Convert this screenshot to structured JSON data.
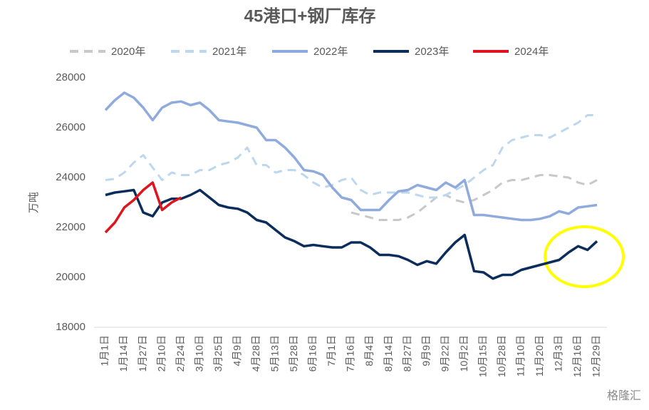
{
  "chart_data": {
    "type": "line",
    "title": "45港口+钢厂库存",
    "ylabel": "万吨",
    "watermark": "格隆汇",
    "categories": [
      "1月1日",
      null,
      "1月14日",
      null,
      "1月27日",
      null,
      "2月10日",
      null,
      "2月24日",
      null,
      "3月10日",
      null,
      "3月25日",
      null,
      "4月9日",
      null,
      "4月28日",
      null,
      "5月13日",
      null,
      "5月28日",
      null,
      "6月16日",
      null,
      "7月1日",
      null,
      "7月16日",
      null,
      "8月4日",
      null,
      "8月14日",
      null,
      "8月27日",
      null,
      "9月9日",
      null,
      "9月22日",
      null,
      "10月2日",
      null,
      "10月15日",
      null,
      "10月28日",
      null,
      "11月10日",
      null,
      "11月20日",
      null,
      "12月3日",
      null,
      "12月16日",
      null,
      "12月29日"
    ],
    "ylim": [
      18000,
      28000
    ],
    "yticks": [
      18000,
      20000,
      22000,
      24000,
      26000,
      28000
    ],
    "grid": false,
    "series": [
      {
        "name": "2020年",
        "color": "#c8c8c8",
        "dashed": true,
        "values": [
          null,
          null,
          null,
          null,
          null,
          null,
          null,
          null,
          null,
          null,
          null,
          null,
          null,
          null,
          null,
          null,
          null,
          null,
          null,
          null,
          null,
          null,
          null,
          null,
          null,
          null,
          22600,
          22500,
          22400,
          22300,
          22300,
          22300,
          22400,
          22600,
          22900,
          23200,
          23300,
          23100,
          23000,
          23100,
          23300,
          23500,
          23800,
          23900,
          23900,
          24000,
          24100,
          24100,
          24050,
          24000,
          23800,
          23700,
          23900
        ]
      },
      {
        "name": "2021年",
        "color": "#bdd7ee",
        "dashed": true,
        "values": [
          23900,
          23950,
          24200,
          24600,
          24900,
          24400,
          23900,
          24200,
          24100,
          24100,
          24300,
          24300,
          24500,
          24600,
          24800,
          25200,
          24500,
          24500,
          24200,
          24300,
          24300,
          24100,
          23800,
          23600,
          23700,
          23900,
          24000,
          23500,
          23300,
          23400,
          23400,
          23400,
          23400,
          23300,
          23200,
          23200,
          23300,
          23500,
          23700,
          24000,
          24300,
          24500,
          25200,
          25500,
          25600,
          25700,
          25700,
          25600,
          25800,
          26000,
          26200,
          26500,
          26500
        ]
      },
      {
        "name": "2022年",
        "color": "#8faadc",
        "dashed": false,
        "values": [
          26700,
          27100,
          27400,
          27200,
          26800,
          26300,
          26800,
          27000,
          27050,
          26900,
          27000,
          26700,
          26300,
          26250,
          26200,
          26100,
          26000,
          25500,
          25500,
          25200,
          24800,
          24300,
          24250,
          24100,
          23600,
          23200,
          23100,
          22700,
          22700,
          22700,
          23100,
          23450,
          23500,
          23700,
          23600,
          23500,
          23800,
          23600,
          23900,
          22500,
          22500,
          22450,
          22400,
          22350,
          22300,
          22300,
          22350,
          22450,
          22650,
          22550,
          22800,
          22850,
          22900
        ]
      },
      {
        "name": "2023年",
        "color": "#0b2d5b",
        "dashed": false,
        "values": [
          23300,
          23400,
          23450,
          23500,
          22600,
          22450,
          23000,
          23150,
          23150,
          23300,
          23500,
          23200,
          22900,
          22800,
          22750,
          22600,
          22300,
          22200,
          21900,
          21600,
          21450,
          21250,
          21300,
          21250,
          21200,
          21200,
          21400,
          21400,
          21200,
          20900,
          20900,
          20850,
          20700,
          20500,
          20650,
          20550,
          21000,
          21400,
          21700,
          20250,
          20200,
          19950,
          20100,
          20100,
          20300,
          20400,
          20500,
          20600,
          20700,
          21000,
          21250,
          21100,
          21450
        ]
      },
      {
        "name": "2024年",
        "color": "#e0141e",
        "dashed": false,
        "values": [
          21800,
          22200,
          22800,
          23100,
          23500,
          23800,
          22700,
          23000,
          23200,
          null,
          null,
          null,
          null,
          null,
          null,
          null,
          null,
          null,
          null,
          null,
          null,
          null,
          null,
          null,
          null,
          null,
          null,
          null,
          null,
          null,
          null,
          null,
          null,
          null,
          null,
          null,
          null,
          null,
          null,
          null,
          null,
          null,
          null,
          null,
          null,
          null,
          null,
          null,
          null,
          null,
          null,
          null,
          null
        ]
      }
    ]
  }
}
